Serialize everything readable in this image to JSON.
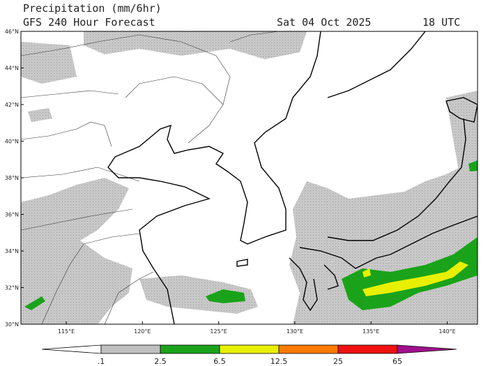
{
  "header": {
    "title": "Precipitation (mm/6hr)",
    "model": "GFS 240 Hour Forecast",
    "date": "Sat 04 Oct 2025",
    "time": "18 UTC"
  },
  "map": {
    "lat_labels": [
      "46°N",
      "44°N",
      "42°N",
      "40°N",
      "38°N",
      "36°N",
      "34°N",
      "32°N",
      "30°N"
    ],
    "lon_labels": [
      "115°E",
      "120°E",
      "125°E",
      "130°E",
      "135°E",
      "140°E"
    ]
  },
  "colorbar": {
    "labels": [
      ".1",
      "2.5",
      "6.5",
      "12.5",
      "25",
      "65"
    ]
  }
}
